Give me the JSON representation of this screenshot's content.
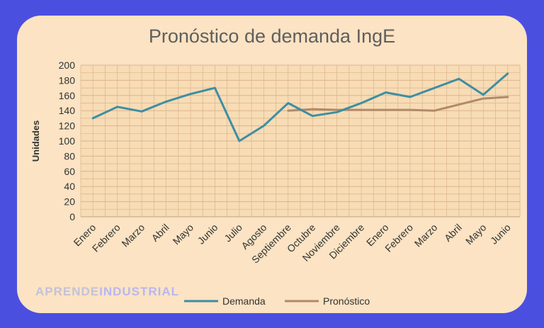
{
  "watermark": {
    "part1": "APRENDE",
    "part2": "INDUSTRIAL"
  },
  "colors": {
    "frame": "#4b4fe0",
    "card": "#fbe3c3",
    "plot_bg": "#f7dcb5",
    "grid": "#ddb48a",
    "demanda": "#3d8ea3",
    "pronostico": "#b08a6a",
    "wm1": "#c3c2d8",
    "wm2": "#b9b6f2"
  },
  "chart_data": {
    "type": "line",
    "title": "Pronóstico de demanda IngE",
    "xlabel": "",
    "ylabel": "Unidades",
    "ylim": [
      0,
      200
    ],
    "yticks": [
      0,
      20,
      40,
      60,
      80,
      100,
      120,
      140,
      160,
      180,
      200
    ],
    "grid": true,
    "legend_position": "bottom",
    "categories": [
      "Enero",
      "Febrero",
      "Marzo",
      "Abril",
      "Mayo",
      "Junio",
      "Julio",
      "Agosto",
      "Septiembre",
      "Octubre",
      "Noviembre",
      "Diciembre",
      "Enero",
      "Febrero",
      "Marzo",
      "Abril",
      "Mayo",
      "Junio"
    ],
    "series": [
      {
        "name": "Demanda",
        "values": [
          130,
          145,
          139,
          152,
          162,
          170,
          100,
          120,
          150,
          133,
          138,
          150,
          164,
          158,
          170,
          182,
          161,
          189
        ]
      },
      {
        "name": "Pronóstico",
        "values": [
          null,
          null,
          null,
          null,
          null,
          null,
          null,
          null,
          140,
          142,
          141,
          141,
          141,
          141,
          140,
          148,
          156,
          158
        ]
      }
    ]
  }
}
